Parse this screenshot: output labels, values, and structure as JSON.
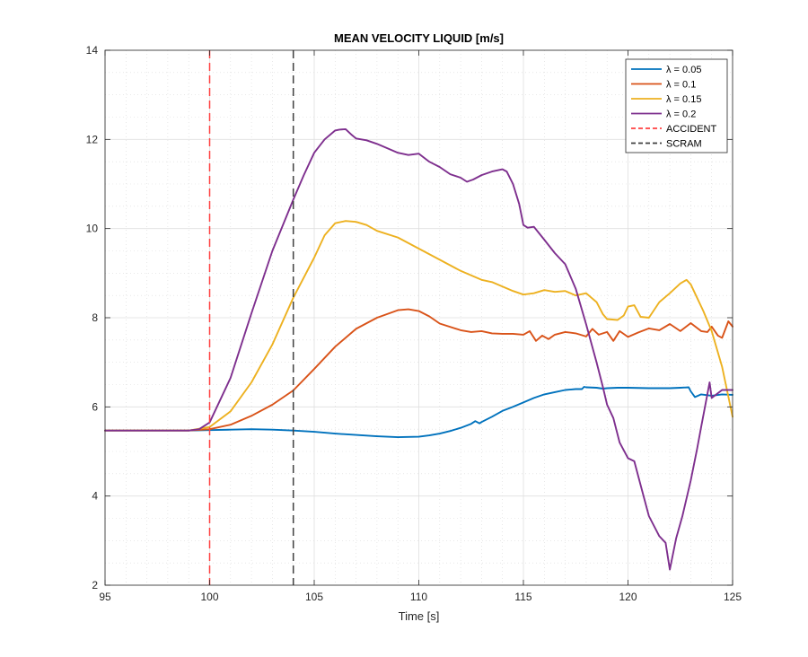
{
  "chart_data": {
    "type": "line",
    "title": "MEAN VELOCITY LIQUID [m/s]",
    "xlabel": "Time [s]",
    "ylabel": "",
    "xlim": [
      95,
      125
    ],
    "ylim": [
      2,
      14
    ],
    "xticks": [
      95,
      100,
      105,
      110,
      115,
      120,
      125
    ],
    "yticks": [
      2,
      4,
      6,
      8,
      10,
      12,
      14
    ],
    "grid": true,
    "minor_grid": true,
    "legend_position": "top-right",
    "series": [
      {
        "name": "λ = 0.05",
        "color": "#0072BD",
        "style": "solid",
        "x": [
          95,
          99,
          100,
          101,
          102,
          103,
          104,
          105,
          106,
          107,
          108,
          109,
          110,
          110.5,
          111,
          111.5,
          112,
          112.5,
          112.7,
          112.9,
          113,
          113.5,
          114,
          114.5,
          115,
          115.5,
          116,
          116.5,
          117,
          117.5,
          117.8,
          117.9,
          118,
          118.5,
          118.8,
          119,
          119.5,
          120,
          121,
          122,
          122.5,
          122.9,
          123,
          123.2,
          123.5,
          124,
          124.5,
          125
        ],
        "y": [
          5.47,
          5.47,
          5.48,
          5.49,
          5.5,
          5.49,
          5.47,
          5.44,
          5.4,
          5.37,
          5.34,
          5.32,
          5.33,
          5.36,
          5.4,
          5.46,
          5.53,
          5.62,
          5.68,
          5.63,
          5.66,
          5.78,
          5.91,
          6.0,
          6.1,
          6.2,
          6.28,
          6.33,
          6.38,
          6.4,
          6.4,
          6.45,
          6.44,
          6.43,
          6.41,
          6.42,
          6.43,
          6.43,
          6.42,
          6.42,
          6.43,
          6.44,
          6.35,
          6.22,
          6.28,
          6.25,
          6.28,
          6.27
        ]
      },
      {
        "name": "λ = 0.1",
        "color": "#D95319",
        "style": "solid",
        "x": [
          95,
          99,
          100,
          101,
          102,
          103,
          104,
          105,
          106,
          107,
          108,
          109,
          109.5,
          110,
          110.5,
          111,
          112,
          112.5,
          113,
          113.5,
          114,
          114.5,
          115,
          115.3,
          115.6,
          115.9,
          116.2,
          116.5,
          117,
          117.5,
          118,
          118.3,
          118.6,
          119,
          119.3,
          119.6,
          120,
          120.5,
          121,
          121.5,
          122,
          122.5,
          123,
          123.5,
          123.8,
          124,
          124.3,
          124.5,
          124.8,
          125
        ],
        "y": [
          5.47,
          5.47,
          5.5,
          5.6,
          5.8,
          6.05,
          6.37,
          6.85,
          7.35,
          7.75,
          8.0,
          8.17,
          8.19,
          8.15,
          8.03,
          7.87,
          7.72,
          7.68,
          7.7,
          7.65,
          7.64,
          7.64,
          7.62,
          7.7,
          7.48,
          7.6,
          7.52,
          7.62,
          7.68,
          7.65,
          7.58,
          7.75,
          7.62,
          7.68,
          7.48,
          7.7,
          7.57,
          7.67,
          7.76,
          7.72,
          7.86,
          7.7,
          7.88,
          7.7,
          7.68,
          7.8,
          7.6,
          7.55,
          7.92,
          7.8
        ]
      },
      {
        "name": "λ = 0.15",
        "color": "#EDB120",
        "style": "solid",
        "x": [
          95,
          99,
          100,
          101,
          102,
          103,
          104,
          105,
          105.5,
          106,
          106.5,
          107,
          107.5,
          108,
          109,
          110,
          111,
          112,
          113,
          113.5,
          114,
          114.5,
          115,
          115.5,
          116,
          116.5,
          117,
          117.5,
          118,
          118.5,
          118.8,
          119,
          119.5,
          119.8,
          120,
          120.3,
          120.6,
          121,
          121.5,
          122,
          122.5,
          122.8,
          123,
          123.3,
          123.6,
          124,
          124.5,
          125
        ],
        "y": [
          5.47,
          5.47,
          5.55,
          5.9,
          6.55,
          7.4,
          8.45,
          9.35,
          9.85,
          10.12,
          10.17,
          10.15,
          10.08,
          9.95,
          9.8,
          9.55,
          9.3,
          9.05,
          8.85,
          8.8,
          8.7,
          8.6,
          8.52,
          8.55,
          8.62,
          8.58,
          8.6,
          8.5,
          8.55,
          8.35,
          8.08,
          7.97,
          7.95,
          8.05,
          8.25,
          8.28,
          8.02,
          8.0,
          8.35,
          8.55,
          8.77,
          8.85,
          8.75,
          8.45,
          8.15,
          7.7,
          6.9,
          5.78
        ]
      },
      {
        "name": "λ = 0.2",
        "color": "#7E2F8E",
        "style": "solid",
        "x": [
          95,
          99,
          99.5,
          100,
          101,
          102,
          103,
          104,
          104.5,
          105,
          105.5,
          106,
          106.2,
          106.5,
          106.8,
          107,
          107.5,
          108,
          108.5,
          109,
          109.5,
          110,
          110.5,
          111,
          111.5,
          112,
          112.3,
          112.6,
          113,
          113.5,
          114,
          114.2,
          114.5,
          114.8,
          115,
          115.2,
          115.5,
          116,
          116.5,
          117,
          117.5,
          118,
          118.5,
          118.8,
          119,
          119.3,
          119.6,
          120,
          120.3,
          120.6,
          121,
          121.5,
          121.8,
          122,
          122.3,
          122.6,
          123,
          123.3,
          123.5,
          123.7,
          123.9,
          124,
          124.5,
          125
        ],
        "y": [
          5.47,
          5.47,
          5.5,
          5.65,
          6.65,
          8.1,
          9.5,
          10.65,
          11.2,
          11.7,
          12.0,
          12.2,
          12.22,
          12.23,
          12.1,
          12.02,
          11.98,
          11.9,
          11.8,
          11.7,
          11.65,
          11.68,
          11.5,
          11.38,
          11.22,
          11.14,
          11.05,
          11.1,
          11.2,
          11.28,
          11.33,
          11.28,
          11.0,
          10.55,
          10.08,
          10.02,
          10.04,
          9.75,
          9.45,
          9.2,
          8.65,
          7.85,
          7.0,
          6.45,
          6.05,
          5.75,
          5.2,
          4.85,
          4.78,
          4.25,
          3.55,
          3.1,
          2.95,
          2.35,
          3.05,
          3.55,
          4.35,
          5.05,
          5.55,
          6.05,
          6.55,
          6.2,
          6.38,
          6.38
        ]
      }
    ],
    "reference_lines": [
      {
        "name": "ACCIDENT",
        "x": 100,
        "color": "#FF4040",
        "style": "dashed"
      },
      {
        "name": "SCRAM",
        "x": 104,
        "color": "#404040",
        "style": "dashed"
      }
    ]
  }
}
